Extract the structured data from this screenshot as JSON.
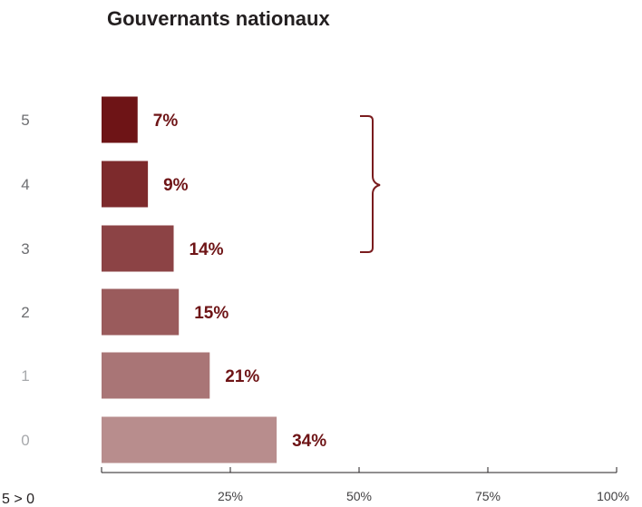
{
  "colors": {
    "label": "#6e1416",
    "bracket": "#7a1c1e",
    "bars": [
      "#6e1416",
      "#7d2a2c",
      "#8c4345",
      "#9a5b5c",
      "#a97576",
      "#b88d8d"
    ]
  },
  "chart_data": {
    "type": "bar",
    "orientation": "horizontal",
    "title": "Gouvernants nationaux",
    "categories": [
      "5",
      "4",
      "3",
      "2",
      "1",
      "0"
    ],
    "values": [
      7,
      9,
      14,
      15,
      21,
      34
    ],
    "value_labels": [
      "7%",
      "9%",
      "14%",
      "15%",
      "21%",
      "34%"
    ],
    "xlim": [
      0,
      100
    ],
    "x_ticks": [
      25,
      50,
      75,
      100
    ],
    "x_tick_labels": [
      "25%",
      "50%",
      "75%",
      "100%"
    ],
    "axis_note": "5 > 0",
    "grid": false,
    "legend": "none",
    "bracket_groups": [
      [
        "5",
        "4",
        "3"
      ]
    ]
  }
}
